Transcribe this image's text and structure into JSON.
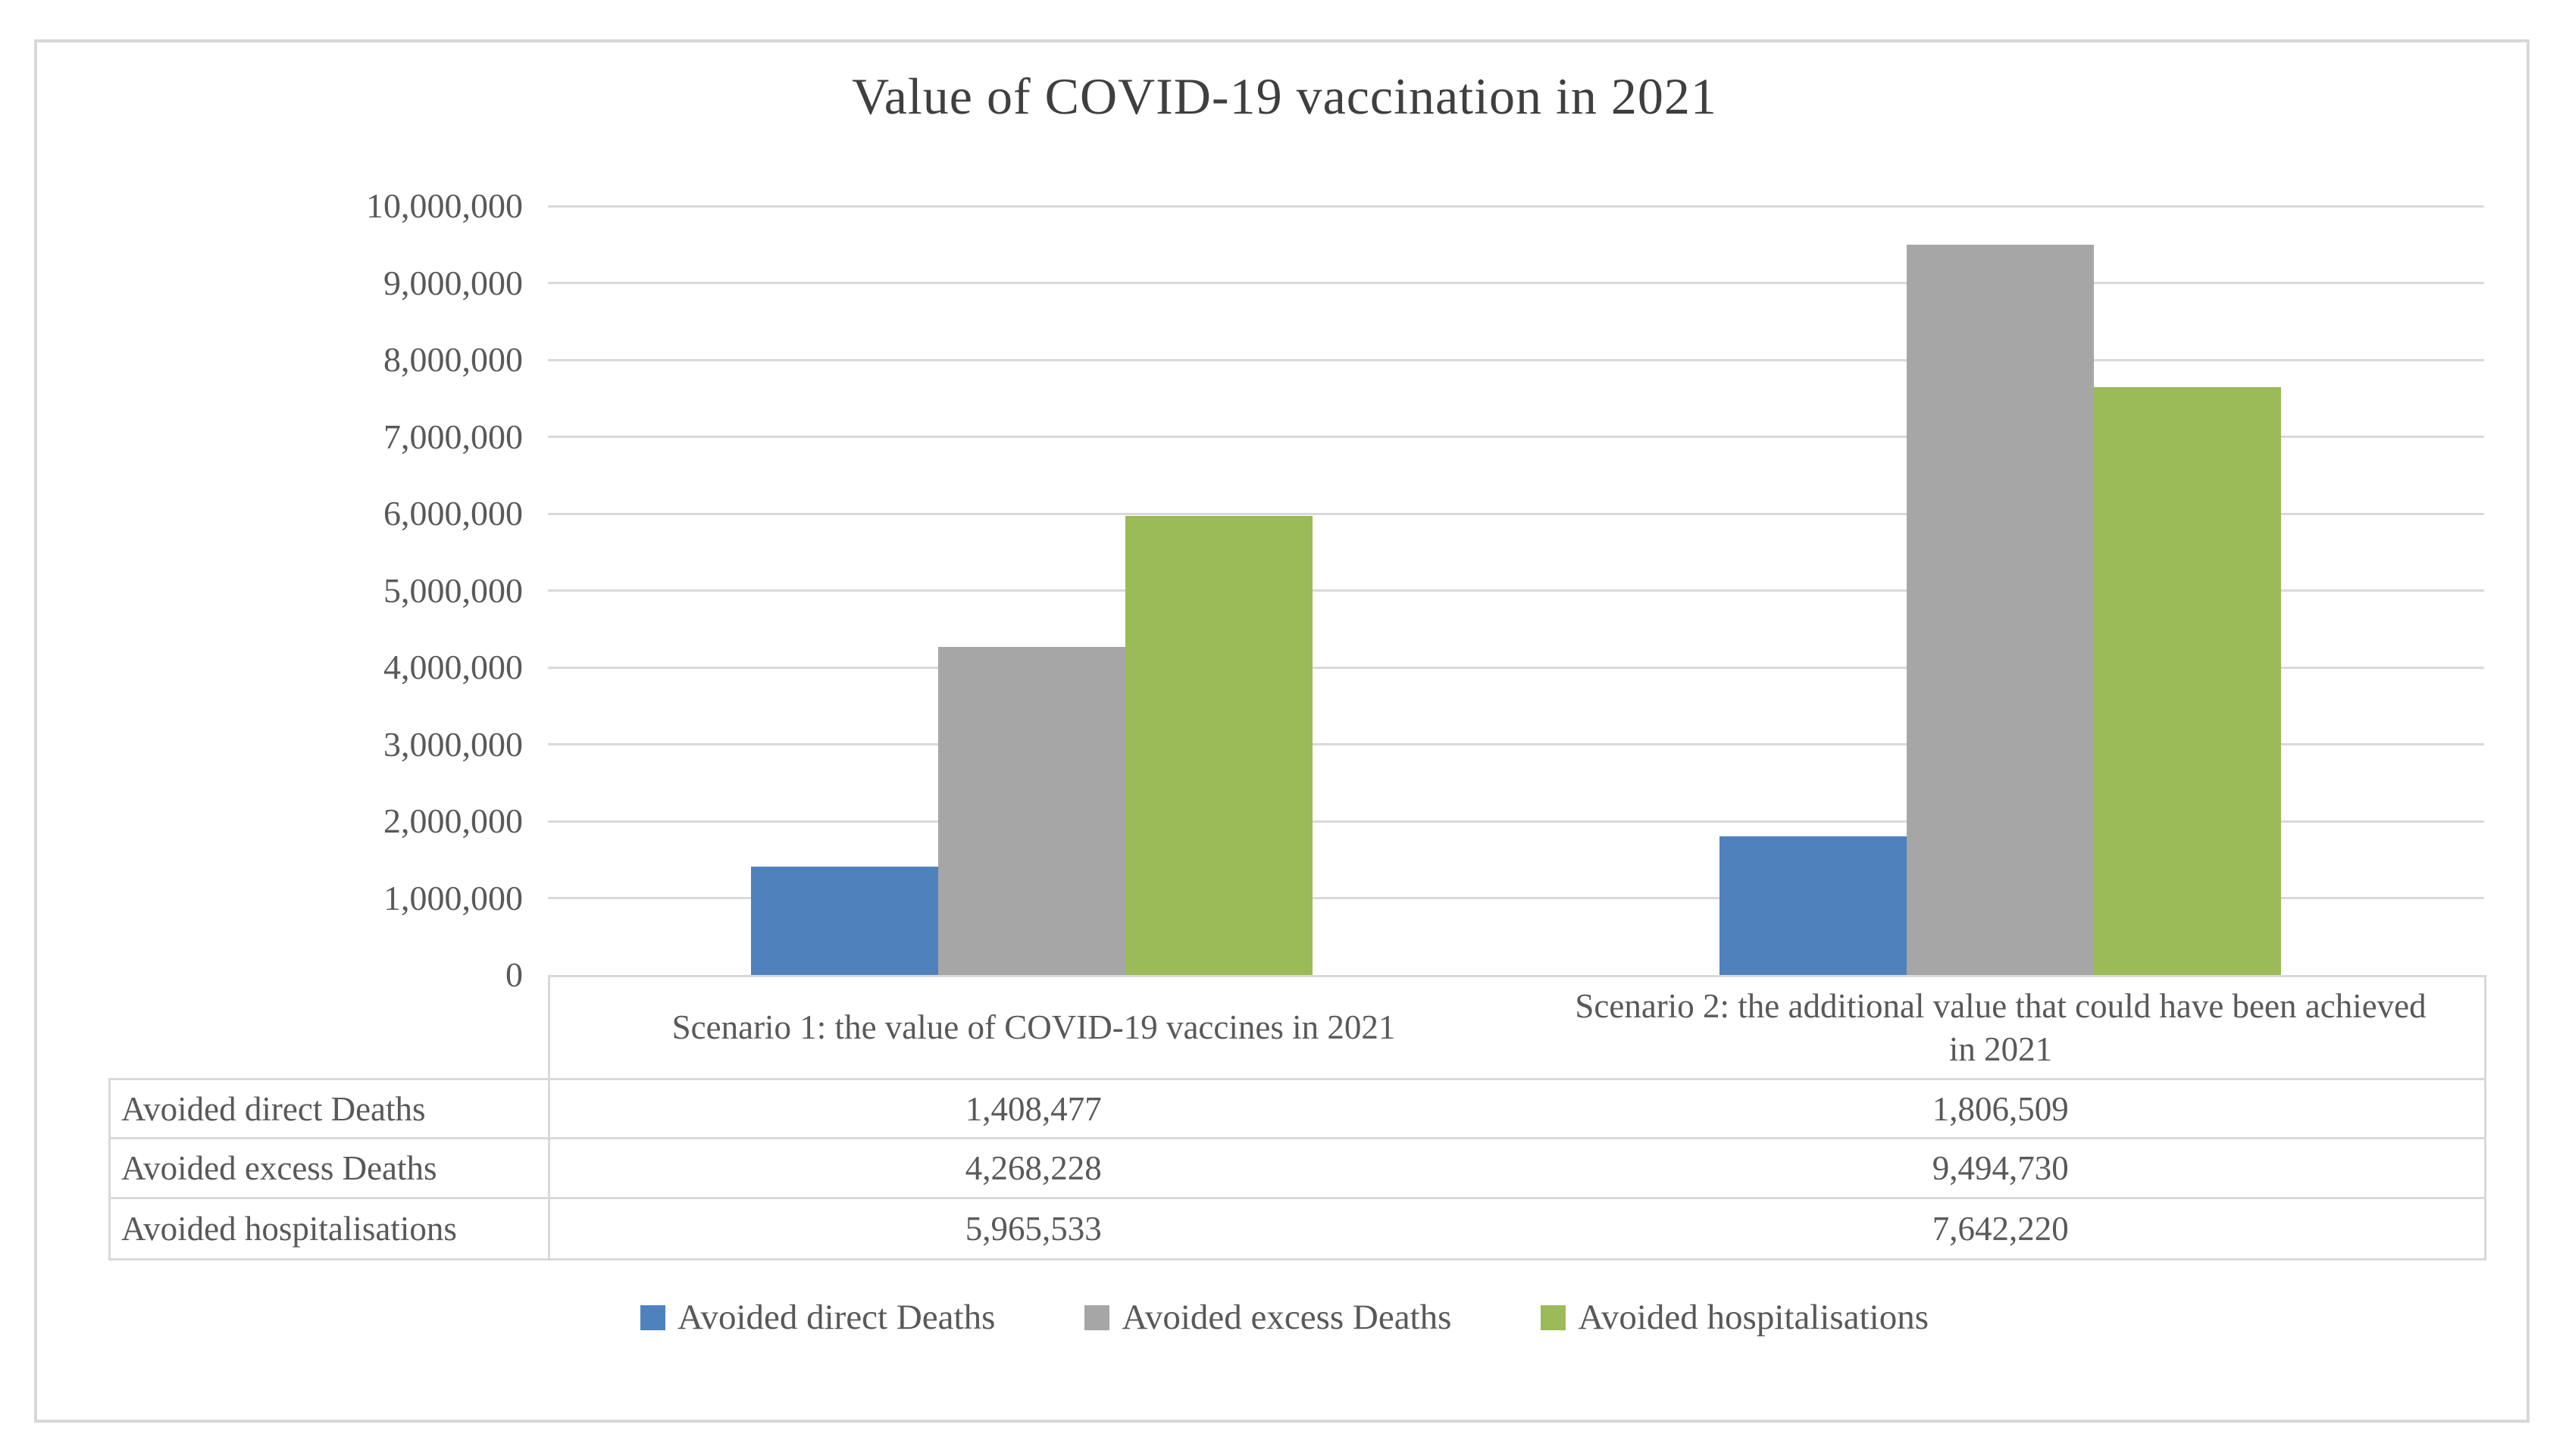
{
  "chart_data": {
    "type": "bar",
    "title": "Value of COVID-19 vaccination in 2021",
    "categories": [
      "Scenario 1: the value of COVID-19 vaccines in 2021",
      "Scenario 2: the additional value that could have been achieved in 2021"
    ],
    "series": [
      {
        "name": "Avoided direct Deaths",
        "color": "#4f81bd",
        "values": [
          1408477,
          1806509
        ]
      },
      {
        "name": "Avoided excess Deaths",
        "color": "#a6a6a6",
        "values": [
          4268228,
          9494730
        ]
      },
      {
        "name": "Avoided hospitalisations",
        "color": "#9bbb59",
        "values": [
          5965533,
          7642220
        ]
      }
    ],
    "ylim": [
      0,
      10000000
    ],
    "ytick_step": 1000000,
    "ytick_labels": [
      "0",
      "1,000,000",
      "2,000,000",
      "3,000,000",
      "4,000,000",
      "5,000,000",
      "6,000,000",
      "7,000,000",
      "8,000,000",
      "9,000,000",
      "10,000,000"
    ],
    "grid": true,
    "legend_position": "bottom"
  },
  "table": {
    "row_labels": [
      "Avoided direct Deaths",
      "Avoided excess Deaths",
      "Avoided hospitalisations"
    ],
    "cell_values": [
      [
        "1,408,477",
        "1,806,509"
      ],
      [
        "4,268,228",
        "9,494,730"
      ],
      [
        "5,965,533",
        "7,642,220"
      ]
    ]
  },
  "colors": {
    "grid": "#d9d9d9",
    "frame_border": "#d8d8d8",
    "axis_text": "#595959",
    "title_text": "#3f3f3f"
  }
}
